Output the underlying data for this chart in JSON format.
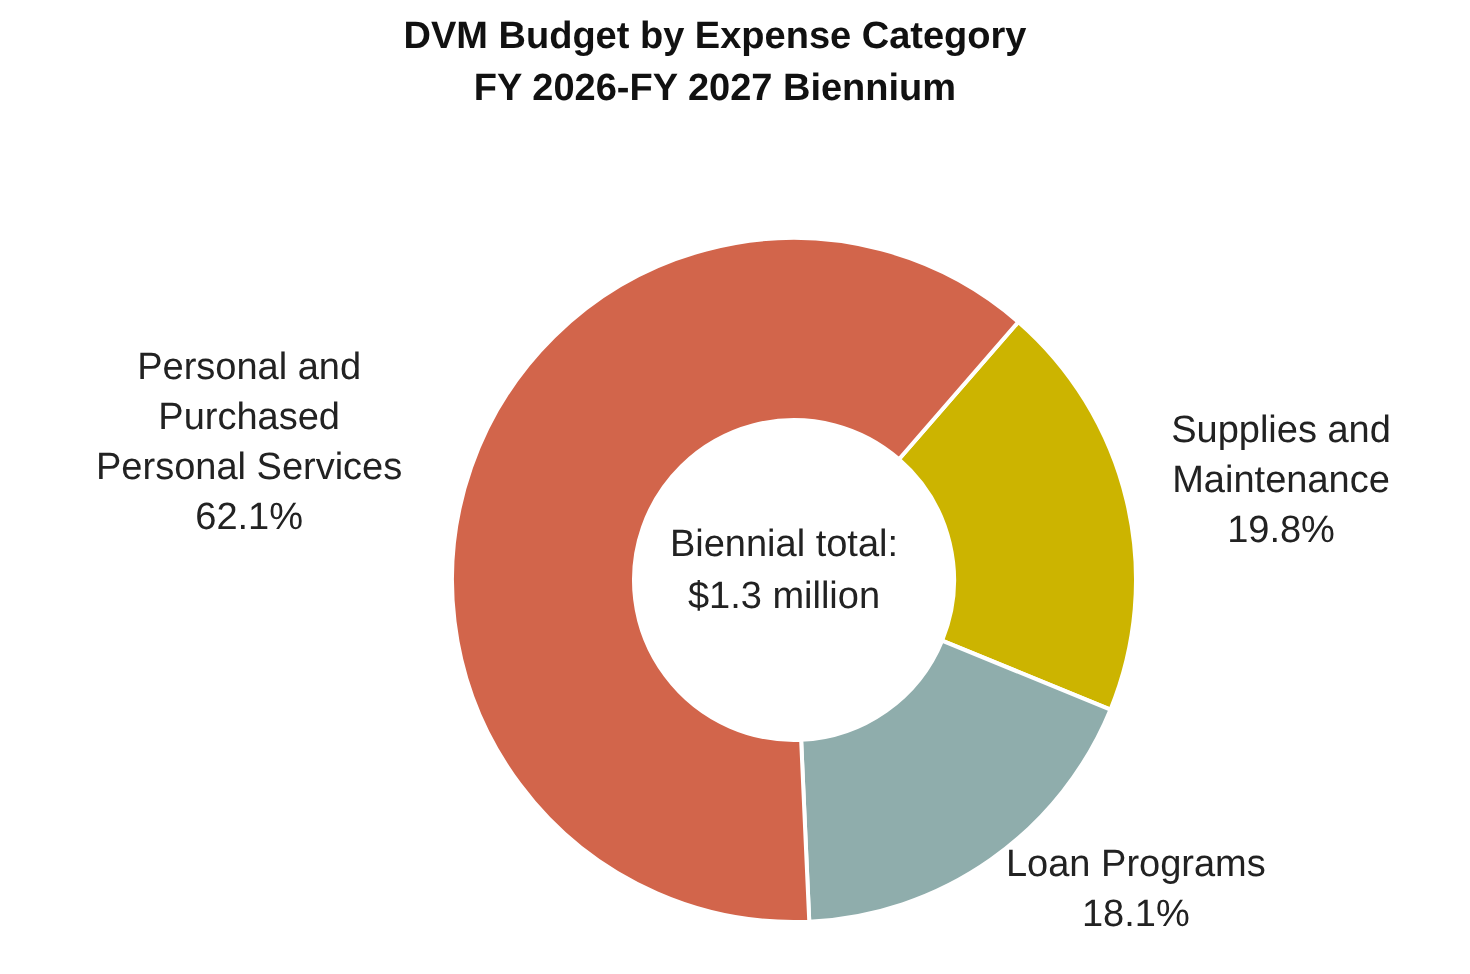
{
  "chart_data": {
    "type": "donut",
    "title": "DVM Budget by Expense Category",
    "subtitle": "FY 2026-FY 2027 Biennium",
    "categories": [
      "Supplies and Maintenance",
      "Loan Programs",
      "Personal and Purchased Personal Services"
    ],
    "values": [
      19.8,
      18.1,
      62.1
    ],
    "value_labels": [
      "19.8%",
      "18.1%",
      "62.1%"
    ],
    "colors": [
      "#ccb400",
      "#8fadac",
      "#d2654b"
    ],
    "annotations": [
      "Biennial total: $1.3 million"
    ]
  }
}
